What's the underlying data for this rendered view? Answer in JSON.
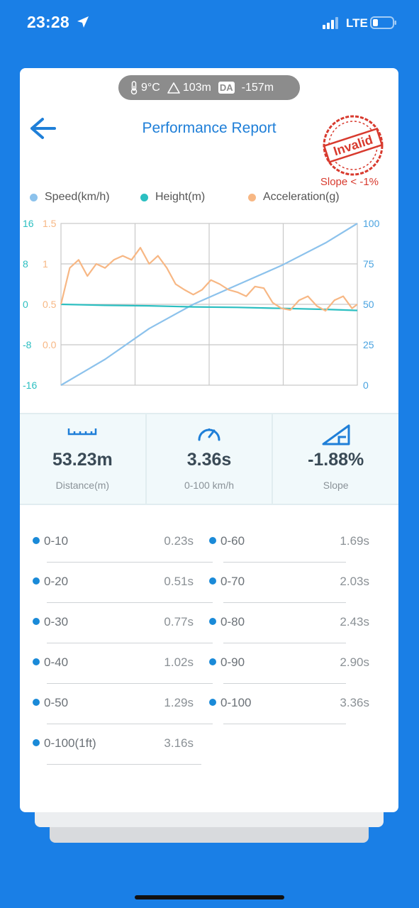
{
  "status_bar": {
    "time": "23:28",
    "network": "LTE"
  },
  "environment": {
    "temperature": "9°C",
    "altitude": "103m",
    "da_label": "DA",
    "density_altitude": "-157m"
  },
  "header": {
    "title": "Performance Report",
    "stamp_text": "Invalid",
    "slope_warning": "Slope < -1%"
  },
  "chart_data": {
    "type": "line",
    "series": [
      {
        "name": "Speed(km/h)",
        "color": "#8cc2ec",
        "axis": "right",
        "x": [
          0,
          0.5,
          1.0,
          1.5,
          2.0,
          2.5,
          3.0,
          3.36
        ],
        "values": [
          0,
          16,
          35,
          50,
          62,
          74,
          88,
          100
        ]
      },
      {
        "name": "Height(m)",
        "color": "#2bbfc1",
        "axis": "left",
        "x": [
          0,
          0.5,
          1.0,
          1.5,
          2.0,
          2.5,
          3.0,
          3.36
        ],
        "values": [
          0,
          -0.2,
          -0.3,
          -0.5,
          -0.6,
          -0.8,
          -1.0,
          -1.2
        ]
      },
      {
        "name": "Acceleration(g)",
        "color": "#f7b784",
        "axis": "left2",
        "x": [
          0,
          0.1,
          0.2,
          0.3,
          0.4,
          0.5,
          0.6,
          0.7,
          0.8,
          0.9,
          1.0,
          1.1,
          1.2,
          1.3,
          1.4,
          1.5,
          1.6,
          1.7,
          1.8,
          1.9,
          2.0,
          2.1,
          2.2,
          2.3,
          2.4,
          2.5,
          2.6,
          2.7,
          2.8,
          2.9,
          3.0,
          3.1,
          3.2,
          3.3,
          3.36
        ],
        "values": [
          0.5,
          0.95,
          1.05,
          0.85,
          1.0,
          0.95,
          1.05,
          1.1,
          1.05,
          1.2,
          1.0,
          1.1,
          0.95,
          0.75,
          0.68,
          0.62,
          0.68,
          0.8,
          0.75,
          0.68,
          0.65,
          0.6,
          0.72,
          0.7,
          0.52,
          0.45,
          0.43,
          0.55,
          0.6,
          0.48,
          0.42,
          0.55,
          0.6,
          0.45,
          0.5
        ]
      }
    ],
    "x_range": [
      0,
      3.36
    ],
    "left_axis": {
      "ticks": [
        "16",
        "8",
        "0",
        "-8",
        "-16"
      ],
      "range": [
        -16,
        16
      ]
    },
    "left2_axis": {
      "ticks": [
        "1.5",
        "1",
        "0.5",
        "0.0"
      ],
      "range": [
        -0.5,
        1.5
      ]
    },
    "right_axis": {
      "ticks": [
        "100",
        "75",
        "50",
        "25",
        "0"
      ],
      "range": [
        0,
        100
      ]
    },
    "grid": true,
    "legend_position": "top"
  },
  "stats": [
    {
      "icon": "ruler-icon",
      "value": "53.23m",
      "label": "Distance(m)"
    },
    {
      "icon": "speedometer-icon",
      "value": "3.36s",
      "label": "0-100 km/h"
    },
    {
      "icon": "slope-icon",
      "value": "-1.88%",
      "label": "Slope"
    }
  ],
  "splits": [
    {
      "name": "0-10",
      "time": "0.23s"
    },
    {
      "name": "0-60",
      "time": "1.69s"
    },
    {
      "name": "0-20",
      "time": "0.51s"
    },
    {
      "name": "0-70",
      "time": "2.03s"
    },
    {
      "name": "0-30",
      "time": "0.77s"
    },
    {
      "name": "0-80",
      "time": "2.43s"
    },
    {
      "name": "0-40",
      "time": "1.02s"
    },
    {
      "name": "0-90",
      "time": "2.90s"
    },
    {
      "name": "0-50",
      "time": "1.29s"
    },
    {
      "name": "0-100",
      "time": "3.36s"
    },
    {
      "name": "0-100(1ft)",
      "time": "3.16s"
    }
  ],
  "colors": {
    "background": "#1a7fe6",
    "accent": "#1f7fd8",
    "stamp": "#d83a2e"
  }
}
